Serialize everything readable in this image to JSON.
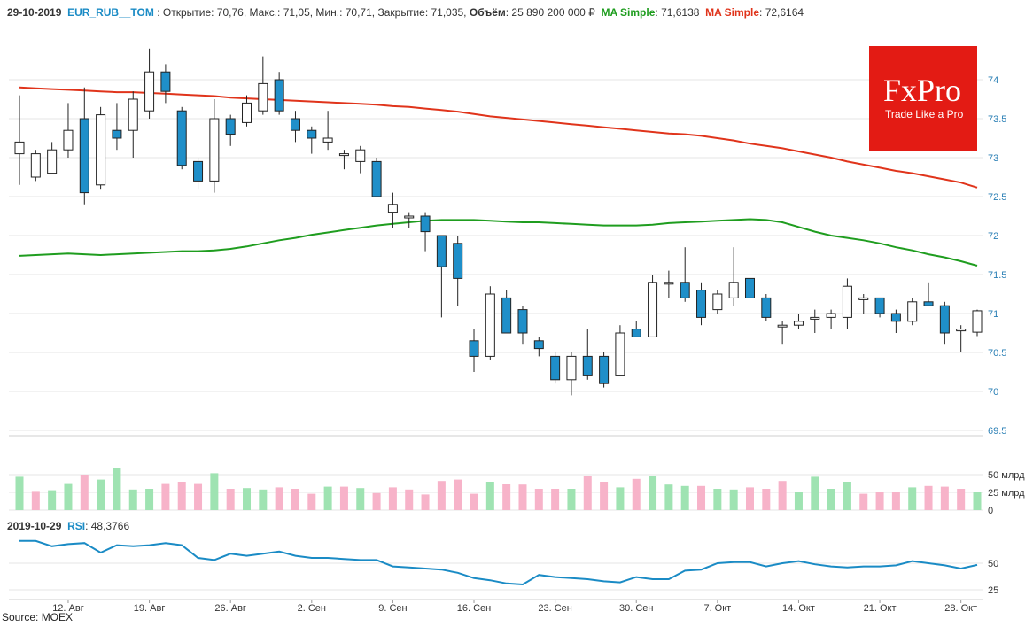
{
  "header": {
    "date": "29-10-2019",
    "symbol": "EUR_RUB__TOM",
    "open_label": ": Открытие: 70,76,",
    "high_label": "Макс.: 71,05,",
    "low_label": "Мин.: 70,71,",
    "close_label": "Закрытие: 71,035,",
    "volume_label": "Объём",
    "volume_value": ": 25 890 200 000 ₽",
    "ma1_label": "MA Simple",
    "ma1_value": ": 71,6138",
    "ma2_label": "MA Simple",
    "ma2_value": ": 72,6164"
  },
  "rsi_header": {
    "date": "2019-10-29",
    "label": "RSI",
    "value": ": 48,3766"
  },
  "logo": {
    "brand": "FxPro",
    "tagline": "Trade Like a Pro"
  },
  "source": "Source: MOEX",
  "colors": {
    "up_fill": "#ffffff",
    "down_fill": "#1f8fc9",
    "ma_fast": "#1f9d1f",
    "ma_slow": "#e0341b",
    "vol_up": "#9fe3b2",
    "vol_down": "#f7b3c9",
    "rsi": "#1a8bc5",
    "grid": "#e6e6e6"
  },
  "chart_data": [
    {
      "type": "candlestick",
      "x_tick_labels": [
        "12. Авг",
        "19. Авг",
        "26. Авг",
        "2. Сен",
        "9. Сен",
        "16. Сен",
        "23. Сен",
        "30. Сен",
        "7. Окт",
        "14. Окт",
        "21. Окт",
        "28. Окт"
      ],
      "y_tick_labels": [
        "69.5",
        "70",
        "70.5",
        "71",
        "71.5",
        "72",
        "72.5",
        "73",
        "73.5",
        "74"
      ],
      "ylim": [
        69.5,
        74.4
      ],
      "candles": [
        [
          73.05,
          73.2,
          73.8,
          72.65
        ],
        [
          72.75,
          73.05,
          73.1,
          72.7
        ],
        [
          72.8,
          73.1,
          73.2,
          72.8
        ],
        [
          73.1,
          73.35,
          73.7,
          73.0
        ],
        [
          73.5,
          72.55,
          73.9,
          72.4
        ],
        [
          72.65,
          73.55,
          73.65,
          72.6
        ],
        [
          73.35,
          73.25,
          73.7,
          73.1
        ],
        [
          73.35,
          73.75,
          73.85,
          73.0
        ],
        [
          73.6,
          74.1,
          74.4,
          73.5
        ],
        [
          74.1,
          73.85,
          74.2,
          73.7
        ],
        [
          73.6,
          72.9,
          73.65,
          72.85
        ],
        [
          72.95,
          72.7,
          73.0,
          72.6
        ],
        [
          72.7,
          73.5,
          73.75,
          72.55
        ],
        [
          73.5,
          73.3,
          73.55,
          73.15
        ],
        [
          73.45,
          73.7,
          73.8,
          73.4
        ],
        [
          73.6,
          73.95,
          74.3,
          73.55
        ],
        [
          74.0,
          73.6,
          74.1,
          73.55
        ],
        [
          73.5,
          73.35,
          73.6,
          73.2
        ],
        [
          73.35,
          73.25,
          73.4,
          73.05
        ],
        [
          73.2,
          73.25,
          73.6,
          73.1
        ],
        [
          73.05,
          73.05,
          73.1,
          72.85
        ],
        [
          72.95,
          73.1,
          73.15,
          72.8
        ],
        [
          72.95,
          72.5,
          73.0,
          72.5
        ],
        [
          72.3,
          72.4,
          72.55,
          72.1
        ],
        [
          72.25,
          72.25,
          72.3,
          72.1
        ],
        [
          72.25,
          72.05,
          72.3,
          71.8
        ],
        [
          72.0,
          71.6,
          72.0,
          70.95
        ],
        [
          71.9,
          71.45,
          72.0,
          71.1
        ],
        [
          70.65,
          70.45,
          70.8,
          70.25
        ],
        [
          70.45,
          71.25,
          71.35,
          70.4
        ],
        [
          71.2,
          70.75,
          71.3,
          70.75
        ],
        [
          71.05,
          70.75,
          71.1,
          70.6
        ],
        [
          70.65,
          70.55,
          70.7,
          70.45
        ],
        [
          70.45,
          70.15,
          70.5,
          70.1
        ],
        [
          70.15,
          70.45,
          70.5,
          69.95
        ],
        [
          70.45,
          70.2,
          70.8,
          70.15
        ],
        [
          70.45,
          70.1,
          70.5,
          70.05
        ],
        [
          70.2,
          70.75,
          70.85,
          70.2
        ],
        [
          70.8,
          70.7,
          70.9,
          70.7
        ],
        [
          70.7,
          71.4,
          71.5,
          70.7
        ],
        [
          71.4,
          71.4,
          71.55,
          71.2
        ],
        [
          71.4,
          71.2,
          71.85,
          71.15
        ],
        [
          71.3,
          70.95,
          71.4,
          70.85
        ],
        [
          71.05,
          71.25,
          71.3,
          71.0
        ],
        [
          71.2,
          71.4,
          71.85,
          71.1
        ],
        [
          71.45,
          71.2,
          71.5,
          71.1
        ],
        [
          71.2,
          70.95,
          71.25,
          70.9
        ],
        [
          70.85,
          70.85,
          70.9,
          70.6
        ],
        [
          70.85,
          70.9,
          71.0,
          70.8
        ],
        [
          70.95,
          70.95,
          71.05,
          70.75
        ],
        [
          70.95,
          71.0,
          71.05,
          70.8
        ],
        [
          70.95,
          71.35,
          71.45,
          70.8
        ],
        [
          71.2,
          71.2,
          71.25,
          71.0
        ],
        [
          71.2,
          71.0,
          71.2,
          70.95
        ],
        [
          71.0,
          70.9,
          71.05,
          70.75
        ],
        [
          70.9,
          71.15,
          71.2,
          70.85
        ],
        [
          71.15,
          71.1,
          71.4,
          71.1
        ],
        [
          71.1,
          70.75,
          71.15,
          70.6
        ],
        [
          70.8,
          70.8,
          70.85,
          70.5
        ],
        [
          70.76,
          71.035,
          71.05,
          70.71
        ]
      ],
      "ma_fast": [
        71.74,
        71.75,
        71.76,
        71.77,
        71.76,
        71.75,
        71.76,
        71.77,
        71.78,
        71.79,
        71.8,
        71.8,
        71.81,
        71.83,
        71.86,
        71.9,
        71.94,
        71.97,
        72.01,
        72.04,
        72.07,
        72.1,
        72.13,
        72.15,
        72.17,
        72.19,
        72.2,
        72.2,
        72.2,
        72.19,
        72.18,
        72.17,
        72.17,
        72.16,
        72.15,
        72.14,
        72.13,
        72.13,
        72.13,
        72.14,
        72.16,
        72.17,
        72.18,
        72.19,
        72.2,
        72.21,
        72.2,
        72.17,
        72.11,
        72.05,
        72.0,
        71.97,
        71.94,
        71.9,
        71.85,
        71.81,
        71.76,
        71.72,
        71.67,
        71.6138
      ],
      "ma_slow": [
        73.9,
        73.89,
        73.88,
        73.87,
        73.86,
        73.85,
        73.84,
        73.84,
        73.83,
        73.82,
        73.81,
        73.8,
        73.79,
        73.77,
        73.76,
        73.75,
        73.74,
        73.73,
        73.72,
        73.71,
        73.7,
        73.69,
        73.68,
        73.66,
        73.65,
        73.63,
        73.61,
        73.59,
        73.56,
        73.53,
        73.51,
        73.49,
        73.47,
        73.45,
        73.43,
        73.41,
        73.39,
        73.37,
        73.35,
        73.33,
        73.31,
        73.3,
        73.28,
        73.25,
        73.22,
        73.18,
        73.15,
        73.12,
        73.08,
        73.04,
        73.0,
        72.95,
        72.91,
        72.87,
        72.83,
        72.8,
        72.76,
        72.72,
        72.68,
        72.6164
      ]
    },
    {
      "type": "bar",
      "series_label": "Объём",
      "y_tick_labels": [
        "50 млрд",
        "25 млрд",
        "0"
      ],
      "ylim": [
        0,
        62
      ],
      "values": [
        47,
        27,
        28,
        38,
        50,
        43,
        60,
        29,
        30,
        38,
        40,
        38,
        52,
        30,
        31,
        29,
        32,
        30,
        23,
        33,
        33,
        31,
        24,
        32,
        29,
        22,
        41,
        43,
        23,
        40,
        37,
        36,
        30,
        30,
        30,
        48,
        40,
        32,
        44,
        48,
        36,
        34,
        34,
        30,
        29,
        32,
        30,
        41,
        25,
        47,
        30,
        40,
        23,
        25,
        26,
        32,
        34,
        33,
        30,
        26
      ],
      "direction": [
        "up",
        "down",
        "up",
        "up",
        "down",
        "up",
        "up",
        "up",
        "up",
        "down",
        "down",
        "down",
        "up",
        "down",
        "up",
        "up",
        "down",
        "down",
        "down",
        "up",
        "down",
        "up",
        "down",
        "down",
        "down",
        "down",
        "down",
        "down",
        "down",
        "up",
        "down",
        "down",
        "down",
        "down",
        "up",
        "down",
        "down",
        "up",
        "down",
        "up",
        "up",
        "up",
        "down",
        "up",
        "up",
        "down",
        "down",
        "down",
        "up",
        "up",
        "up",
        "up",
        "down",
        "down",
        "down",
        "up",
        "down",
        "down",
        "down",
        "up"
      ]
    },
    {
      "type": "line",
      "series_label": "RSI",
      "y_tick_labels": [
        "50",
        "25"
      ],
      "ylim": [
        22,
        78
      ],
      "values": [
        71,
        71,
        66,
        68,
        69,
        60,
        67,
        66,
        67,
        69,
        67,
        55,
        53,
        59,
        57,
        59,
        61,
        57,
        55,
        55,
        54,
        53,
        53,
        47,
        46,
        45,
        44,
        41,
        36,
        34,
        31,
        30,
        39,
        37,
        36,
        35,
        33,
        32,
        37,
        35,
        35,
        43,
        44,
        50,
        51,
        51,
        47,
        50,
        52,
        49,
        47,
        46,
        47,
        47,
        48,
        52,
        50,
        48,
        45,
        48.3766
      ]
    }
  ]
}
